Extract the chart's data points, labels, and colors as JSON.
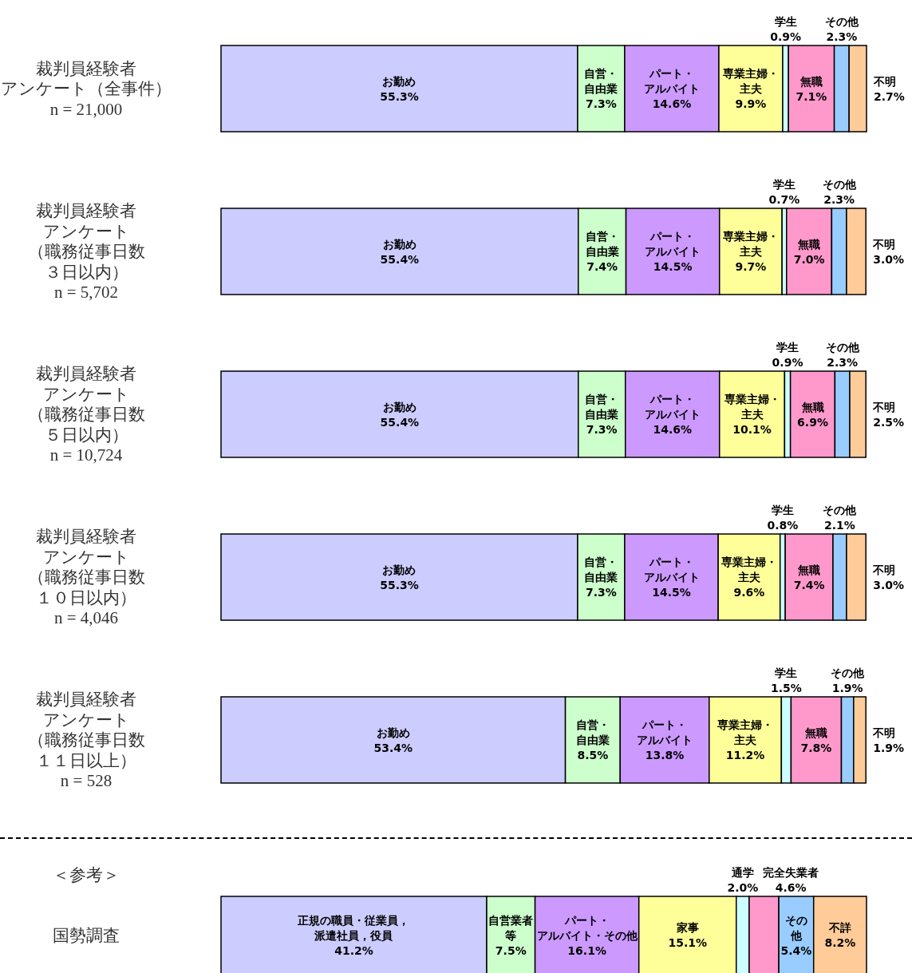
{
  "chart_data": [
    {
      "type": "bar",
      "orientation": "horizontal",
      "stacked": true,
      "tick_labels": "y",
      "categories": [
        "裁判員経験者アンケート（全事件）\nn = 21,000",
        "裁判員経験者アンケート（職務従事日数３日以内）\nn = 5,702",
        "裁判員経験者アンケート（職務従事日数５日以内）\nn = 10,724",
        "裁判員経験者アンケート（職務従事日数１０日以内）\nn = 4,046",
        "裁判員経験者アンケート（職務従事日数１１日以上）\nn = 528"
      ],
      "series": [
        {
          "name": "お勤め",
          "color": "#ccccff",
          "values": [
            55.3,
            55.4,
            55.4,
            55.3,
            53.4
          ],
          "value_labels": [
            "55.3%",
            "55.4%",
            "55.4%",
            "55.3%",
            "53.4%"
          ]
        },
        {
          "name": "自営・自由業",
          "color": "#ccffcc",
          "values": [
            7.3,
            7.4,
            7.3,
            7.3,
            8.5
          ],
          "value_labels": [
            "7.3%",
            "7.4%",
            "7.3%",
            "7.3%",
            "8.5%"
          ]
        },
        {
          "name": "パート・アルバイト",
          "color": "#cc99ff",
          "values": [
            14.6,
            14.5,
            14.6,
            14.5,
            13.8
          ],
          "value_labels": [
            "14.6%",
            "14.5%",
            "14.6%",
            "14.5%",
            "13.8%"
          ]
        },
        {
          "name": "専業主婦・主夫",
          "color": "#ffff99",
          "values": [
            9.9,
            9.7,
            10.1,
            9.6,
            11.2
          ],
          "value_labels": [
            "9.9%",
            "9.7%",
            "10.1%",
            "9.6%",
            "11.2%"
          ]
        },
        {
          "name": "学生",
          "color": "#ccffff",
          "values": [
            0.9,
            0.7,
            0.9,
            0.8,
            1.5
          ],
          "value_labels": [
            "0.9%",
            "0.7%",
            "0.9%",
            "0.8%",
            "1.5%"
          ]
        },
        {
          "name": "無職",
          "color": "#ff99cc",
          "values": [
            7.1,
            7.0,
            6.9,
            7.4,
            7.8
          ],
          "value_labels": [
            "7.1%",
            "7.0%",
            "6.9%",
            "7.4%",
            "7.8%"
          ]
        },
        {
          "name": "その他",
          "color": "#99ccff",
          "values": [
            2.3,
            2.3,
            2.3,
            2.1,
            1.9
          ],
          "value_labels": [
            "2.3%",
            "2.3%",
            "2.3%",
            "2.1%",
            "1.9%"
          ]
        },
        {
          "name": "不明",
          "color": "#ffcc99",
          "values": [
            2.7,
            3.0,
            2.5,
            3.0,
            1.9
          ],
          "value_labels": [
            "2.7%",
            "3.0%",
            "2.5%",
            "3.0%",
            "1.9%"
          ]
        }
      ]
    },
    {
      "type": "bar",
      "orientation": "horizontal",
      "stacked": true,
      "tick_labels": "y",
      "title": "＜参考＞",
      "categories": [
        "国勢調査"
      ],
      "series": [
        {
          "name": "正規の職員・従業員，派遣社員，役員",
          "color": "#ccccff",
          "values": [
            41.2
          ],
          "value_labels": [
            "41.2%"
          ]
        },
        {
          "name": "自営業者等",
          "color": "#ccffcc",
          "values": [
            7.5
          ],
          "value_labels": [
            "7.5%"
          ]
        },
        {
          "name": "パート・アルバイト・その他",
          "color": "#cc99ff",
          "values": [
            16.1
          ],
          "value_labels": [
            "16.1%"
          ]
        },
        {
          "name": "家事",
          "color": "#ffff99",
          "values": [
            15.1
          ],
          "value_labels": [
            "15.1%"
          ]
        },
        {
          "name": "通学",
          "color": "#ccffff",
          "values": [
            2.0
          ],
          "value_labels": [
            "2.0%"
          ]
        },
        {
          "name": "完全失業者",
          "color": "#ff99cc",
          "values": [
            4.6
          ],
          "value_labels": [
            "4.6%"
          ]
        },
        {
          "name": "その他",
          "color": "#99ccff",
          "values": [
            5.4
          ],
          "value_labels": [
            "5.4%"
          ]
        },
        {
          "name": "不詳",
          "color": "#ffcc99",
          "values": [
            8.2
          ],
          "value_labels": [
            "8.2%"
          ]
        }
      ]
    }
  ]
}
